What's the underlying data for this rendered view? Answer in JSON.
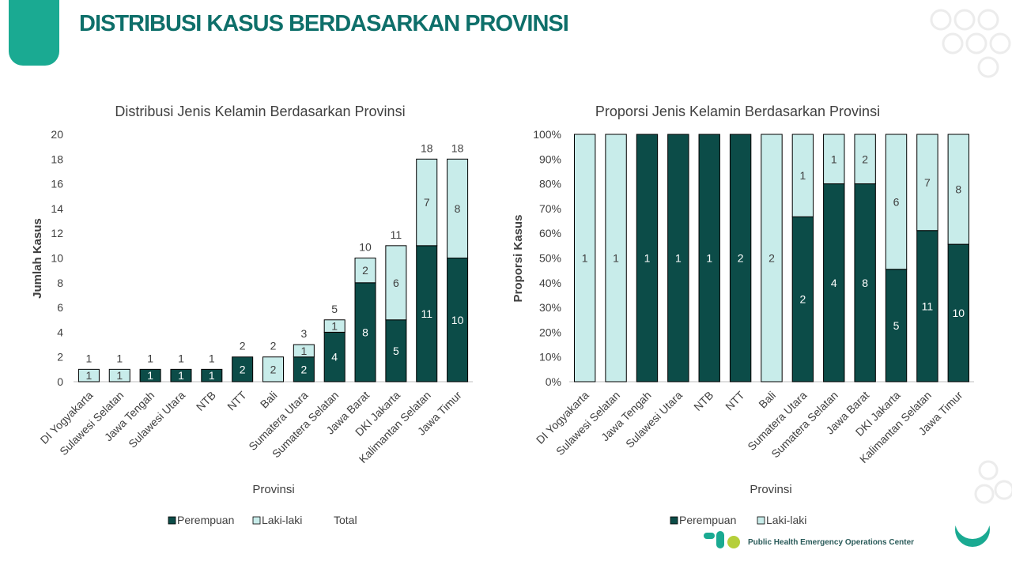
{
  "header": {
    "title": "DISTRIBUSI KASUS BERDASARKAN PROVINSI"
  },
  "footer": {
    "org_name": "Public Health Emergency Operations Center"
  },
  "colors": {
    "perempuan": "#0c4c48",
    "laki": "#c8ecea",
    "accent": "#1aaa92",
    "title": "#0e6f6a"
  },
  "chart_data": [
    {
      "type": "bar",
      "stacked": true,
      "title": "Distribusi Jenis Kelamin Berdasarkan Provinsi",
      "xlabel": "Provinsi",
      "ylabel": "Jumlah Kasus",
      "ylim": [
        0,
        20
      ],
      "yticks": [
        0,
        2,
        4,
        6,
        8,
        10,
        12,
        14,
        16,
        18,
        20
      ],
      "categories": [
        "DI Yogyakarta",
        "Sulawesi Selatan",
        "Jawa Tengah",
        "Sulawesi Utara",
        "NTB",
        "NTT",
        "Bali",
        "Sumatera Utara",
        "Sumatera Selatan",
        "Jawa Barat",
        "DKI Jakarta",
        "Kalimantan Selatan",
        "Jawa Timur"
      ],
      "series": [
        {
          "name": "Perempuan",
          "values": [
            0,
            0,
            1,
            1,
            1,
            2,
            0,
            2,
            4,
            8,
            5,
            11,
            10
          ]
        },
        {
          "name": "Laki-laki",
          "values": [
            1,
            1,
            0,
            0,
            0,
            0,
            2,
            1,
            1,
            2,
            6,
            7,
            8
          ]
        },
        {
          "name": "Total",
          "values": [
            1,
            1,
            1,
            1,
            1,
            2,
            2,
            3,
            5,
            10,
            11,
            18,
            18
          ]
        }
      ],
      "legend": "bottom",
      "grid": false
    },
    {
      "type": "bar",
      "stacked": true,
      "percent": true,
      "title": "Proporsi Jenis Kelamin Berdasarkan Provinsi",
      "xlabel": "Provinsi",
      "ylabel": "Proporsi Kasus",
      "ylim": [
        0,
        100
      ],
      "yticks": [
        "0%",
        "10%",
        "20%",
        "30%",
        "40%",
        "50%",
        "60%",
        "70%",
        "80%",
        "90%",
        "100%"
      ],
      "categories": [
        "DI Yogyakarta",
        "Sulawesi Selatan",
        "Jawa Tengah",
        "Sulawesi Utara",
        "NTB",
        "NTT",
        "Bali",
        "Sumatera Utara",
        "Sumatera Selatan",
        "Jawa Barat",
        "DKI Jakarta",
        "Kalimantan Selatan",
        "Jawa Timur"
      ],
      "series": [
        {
          "name": "Perempuan",
          "values": [
            0,
            0,
            1,
            1,
            1,
            2,
            0,
            2,
            4,
            8,
            5,
            11,
            10
          ]
        },
        {
          "name": "Laki-laki",
          "values": [
            1,
            1,
            0,
            0,
            0,
            0,
            2,
            1,
            1,
            2,
            6,
            7,
            8
          ]
        }
      ],
      "legend": "bottom",
      "grid": false
    }
  ]
}
